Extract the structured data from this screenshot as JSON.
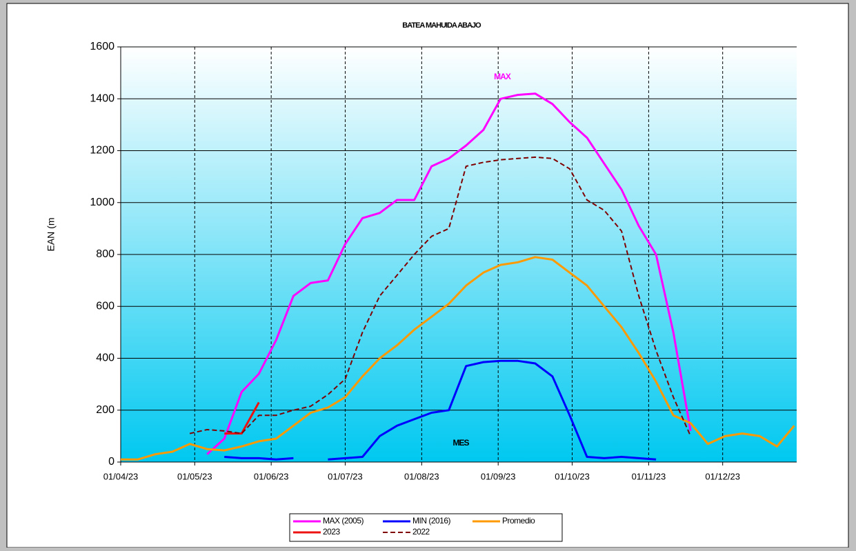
{
  "chart_data": {
    "type": "line",
    "title": "BATEA MAHUIDA ABAJO",
    "y_label": "EAN (m",
    "annotations": [
      "MAX",
      "MES"
    ],
    "x": [
      "01/04/23",
      "08/04/23",
      "15/04/23",
      "22/04/23",
      "29/04/23",
      "06/05/23",
      "13/05/23",
      "20/05/23",
      "27/05/23",
      "03/06/23",
      "10/06/23",
      "17/06/23",
      "24/06/23",
      "01/07/23",
      "08/07/23",
      "15/07/23",
      "22/07/23",
      "29/07/23",
      "05/08/23",
      "12/08/23",
      "19/08/23",
      "26/08/23",
      "02/09/23",
      "09/09/23",
      "16/09/23",
      "23/09/23",
      "30/09/23",
      "07/10/23",
      "14/10/23",
      "21/10/23",
      "28/10/23",
      "04/11/23",
      "11/11/23",
      "18/11/23",
      "25/11/23",
      "02/12/23",
      "09/12/23",
      "16/12/23",
      "23/12/23",
      "30/12/23"
    ],
    "series": [
      {
        "name": "MAX (2005)",
        "color": "#ff00ff",
        "dash": false,
        "values": [
          null,
          null,
          null,
          null,
          null,
          30,
          90,
          270,
          340,
          470,
          640,
          690,
          700,
          840,
          940,
          960,
          1010,
          1010,
          1140,
          1170,
          1220,
          1280,
          1400,
          1415,
          1420,
          1380,
          1310,
          1250,
          1150,
          1050,
          910,
          800,
          500,
          120,
          null,
          null,
          null,
          null,
          null,
          null
        ]
      },
      {
        "name": "MIN (2016)",
        "color": "#0000ff",
        "dash": false,
        "values": [
          null,
          null,
          null,
          null,
          null,
          null,
          20,
          15,
          15,
          10,
          15,
          null,
          10,
          15,
          20,
          100,
          140,
          165,
          190,
          200,
          370,
          385,
          390,
          390,
          380,
          330,
          180,
          20,
          15,
          20,
          15,
          10,
          null,
          null,
          null,
          null,
          null,
          null,
          null,
          null
        ]
      },
      {
        "name": "Promedio",
        "color": "#ff9900",
        "dash": false,
        "values": [
          10,
          10,
          30,
          40,
          70,
          50,
          45,
          60,
          80,
          90,
          140,
          190,
          210,
          250,
          330,
          400,
          450,
          510,
          560,
          610,
          680,
          730,
          760,
          770,
          790,
          780,
          730,
          680,
          600,
          520,
          420,
          310,
          180,
          150,
          70,
          100,
          110,
          100,
          60,
          140
        ]
      },
      {
        "name": "2023",
        "color": "#ee1111",
        "dash": false,
        "values": [
          null,
          null,
          null,
          null,
          null,
          null,
          110,
          110,
          230,
          null,
          null,
          null,
          null,
          null,
          null,
          null,
          null,
          null,
          null,
          null,
          null,
          null,
          null,
          null,
          null,
          null,
          null,
          null,
          null,
          null,
          null,
          null,
          null,
          null,
          null,
          null,
          null,
          null,
          null,
          null
        ]
      },
      {
        "name": "2022",
        "color": "#800000",
        "dash": true,
        "values": [
          null,
          null,
          null,
          null,
          110,
          125,
          120,
          110,
          180,
          180,
          200,
          215,
          260,
          320,
          500,
          640,
          720,
          800,
          870,
          900,
          1140,
          1155,
          1165,
          1170,
          1175,
          1170,
          1130,
          1010,
          970,
          890,
          640,
          430,
          250,
          100,
          null,
          null,
          null,
          null,
          null,
          null
        ]
      }
    ],
    "xlim": [
      "01/04/23",
      "31/12/23"
    ],
    "xticks": [
      "01/04/23",
      "01/05/23",
      "01/06/23",
      "01/07/23",
      "01/08/23",
      "01/09/23",
      "01/10/23",
      "01/11/23",
      "01/12/23"
    ],
    "ylim": [
      0,
      1600
    ],
    "yticks": [
      0,
      200,
      400,
      600,
      800,
      1000,
      1200,
      1400,
      1600
    ],
    "grid": true
  }
}
